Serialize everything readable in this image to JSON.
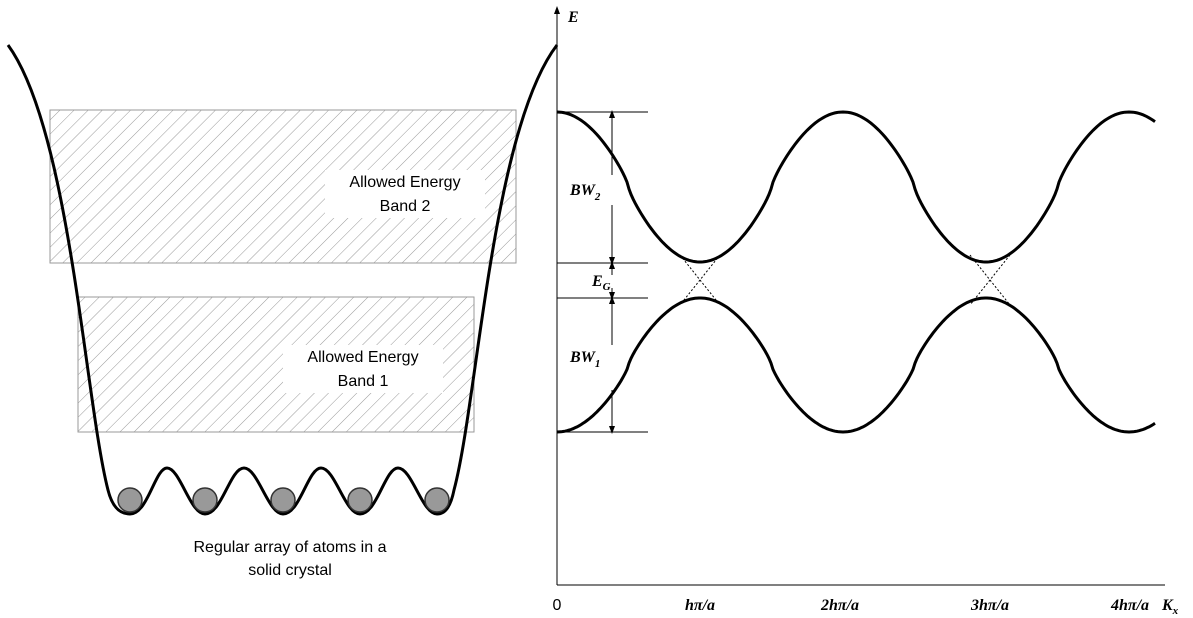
{
  "left": {
    "band2": [
      "Allowed Energy",
      "Band 2"
    ],
    "band1": [
      "Allowed Energy",
      "Band 1"
    ],
    "caption": [
      "Regular array of atoms in a",
      "solid crystal"
    ]
  },
  "right": {
    "y_axis": "E",
    "x_axis": {
      "main": "K",
      "sub": "x"
    },
    "bw2": {
      "main": "BW",
      "sub": "2"
    },
    "eg": {
      "main": "E",
      "sub": "G"
    },
    "bw1": {
      "main": "BW",
      "sub": "1"
    },
    "ticks": [
      "0",
      "hπ/a",
      "2hπ/a",
      "3hπ/a",
      "4hπ/a"
    ]
  }
}
